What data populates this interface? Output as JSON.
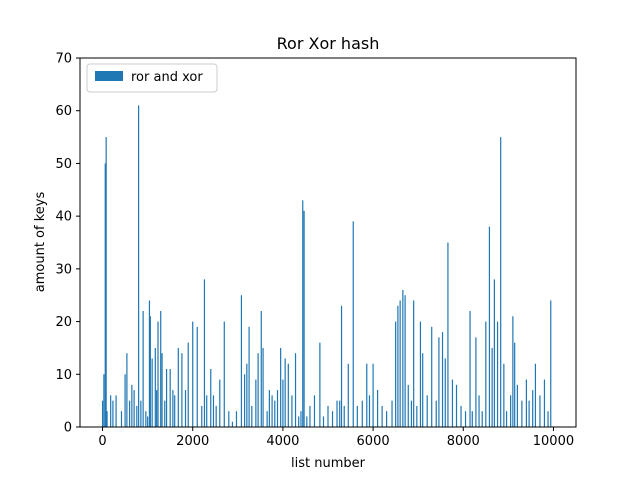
{
  "chart_data": {
    "type": "bar",
    "title": "Ror Xor hash",
    "xlabel": "list number",
    "ylabel": "amount of keys",
    "xlim": [
      -500,
      10500
    ],
    "ylim": [
      0,
      70
    ],
    "xticks": [
      0,
      2000,
      4000,
      6000,
      8000,
      10000
    ],
    "yticks": [
      0,
      10,
      20,
      30,
      40,
      50,
      60,
      70
    ],
    "grid": false,
    "legend_placement": "top-left",
    "bar_color": "#1f77b4",
    "series": [
      {
        "name": "ror and xor",
        "points": [
          [
            0,
            5
          ],
          [
            30,
            10
          ],
          [
            60,
            50
          ],
          [
            80,
            55
          ],
          [
            100,
            3
          ],
          [
            180,
            6
          ],
          [
            230,
            5
          ],
          [
            300,
            6
          ],
          [
            420,
            3
          ],
          [
            500,
            10
          ],
          [
            540,
            14
          ],
          [
            600,
            5
          ],
          [
            650,
            8
          ],
          [
            700,
            7
          ],
          [
            760,
            4
          ],
          [
            800,
            61
          ],
          [
            850,
            5
          ],
          [
            900,
            22
          ],
          [
            960,
            3
          ],
          [
            1000,
            2
          ],
          [
            1040,
            24
          ],
          [
            1060,
            21
          ],
          [
            1100,
            13
          ],
          [
            1170,
            15
          ],
          [
            1200,
            7
          ],
          [
            1230,
            20
          ],
          [
            1290,
            22
          ],
          [
            1320,
            14
          ],
          [
            1380,
            5
          ],
          [
            1420,
            11
          ],
          [
            1500,
            11
          ],
          [
            1560,
            7
          ],
          [
            1600,
            6
          ],
          [
            1680,
            15
          ],
          [
            1760,
            14
          ],
          [
            1840,
            7
          ],
          [
            1900,
            16
          ],
          [
            2000,
            20
          ],
          [
            2100,
            19
          ],
          [
            2200,
            4
          ],
          [
            2260,
            28
          ],
          [
            2310,
            6
          ],
          [
            2400,
            11
          ],
          [
            2460,
            6
          ],
          [
            2520,
            4
          ],
          [
            2600,
            9
          ],
          [
            2700,
            20
          ],
          [
            2800,
            3
          ],
          [
            2880,
            1
          ],
          [
            2970,
            3
          ],
          [
            3080,
            25
          ],
          [
            3150,
            10
          ],
          [
            3200,
            12
          ],
          [
            3250,
            19
          ],
          [
            3310,
            4
          ],
          [
            3400,
            9
          ],
          [
            3450,
            14
          ],
          [
            3520,
            22
          ],
          [
            3560,
            15
          ],
          [
            3650,
            3
          ],
          [
            3700,
            7
          ],
          [
            3760,
            6
          ],
          [
            3820,
            5
          ],
          [
            3880,
            7
          ],
          [
            3950,
            15
          ],
          [
            4000,
            9
          ],
          [
            4050,
            13
          ],
          [
            4120,
            12
          ],
          [
            4200,
            6
          ],
          [
            4280,
            14
          ],
          [
            4350,
            2
          ],
          [
            4400,
            3
          ],
          [
            4440,
            43
          ],
          [
            4470,
            41
          ],
          [
            4530,
            2
          ],
          [
            4600,
            4
          ],
          [
            4700,
            6
          ],
          [
            4820,
            16
          ],
          [
            4900,
            2
          ],
          [
            5000,
            4
          ],
          [
            5100,
            3
          ],
          [
            5200,
            5
          ],
          [
            5260,
            5
          ],
          [
            5300,
            23
          ],
          [
            5360,
            4
          ],
          [
            5450,
            12
          ],
          [
            5560,
            39
          ],
          [
            5650,
            4
          ],
          [
            5760,
            5
          ],
          [
            5860,
            12
          ],
          [
            5920,
            6
          ],
          [
            6000,
            12
          ],
          [
            6100,
            7
          ],
          [
            6200,
            4
          ],
          [
            6300,
            3
          ],
          [
            6420,
            5
          ],
          [
            6500,
            20
          ],
          [
            6550,
            23
          ],
          [
            6600,
            24
          ],
          [
            6660,
            26
          ],
          [
            6710,
            25
          ],
          [
            6780,
            8
          ],
          [
            6850,
            5
          ],
          [
            6900,
            24
          ],
          [
            6970,
            4
          ],
          [
            7050,
            20
          ],
          [
            7100,
            14
          ],
          [
            7200,
            6
          ],
          [
            7300,
            19
          ],
          [
            7400,
            5
          ],
          [
            7460,
            17
          ],
          [
            7540,
            18
          ],
          [
            7600,
            13
          ],
          [
            7660,
            35
          ],
          [
            7760,
            9
          ],
          [
            7850,
            8
          ],
          [
            7950,
            4
          ],
          [
            8050,
            3
          ],
          [
            8150,
            22
          ],
          [
            8200,
            3
          ],
          [
            8280,
            17
          ],
          [
            8350,
            6
          ],
          [
            8420,
            3
          ],
          [
            8500,
            20
          ],
          [
            8580,
            38
          ],
          [
            8640,
            15
          ],
          [
            8690,
            28
          ],
          [
            8760,
            20
          ],
          [
            8830,
            55
          ],
          [
            8900,
            12
          ],
          [
            8960,
            3
          ],
          [
            9050,
            6
          ],
          [
            9100,
            21
          ],
          [
            9140,
            16
          ],
          [
            9200,
            8
          ],
          [
            9300,
            5
          ],
          [
            9400,
            9
          ],
          [
            9460,
            5
          ],
          [
            9540,
            7
          ],
          [
            9600,
            12
          ],
          [
            9700,
            6
          ],
          [
            9800,
            9
          ],
          [
            9880,
            3
          ],
          [
            9940,
            24
          ]
        ]
      }
    ]
  }
}
